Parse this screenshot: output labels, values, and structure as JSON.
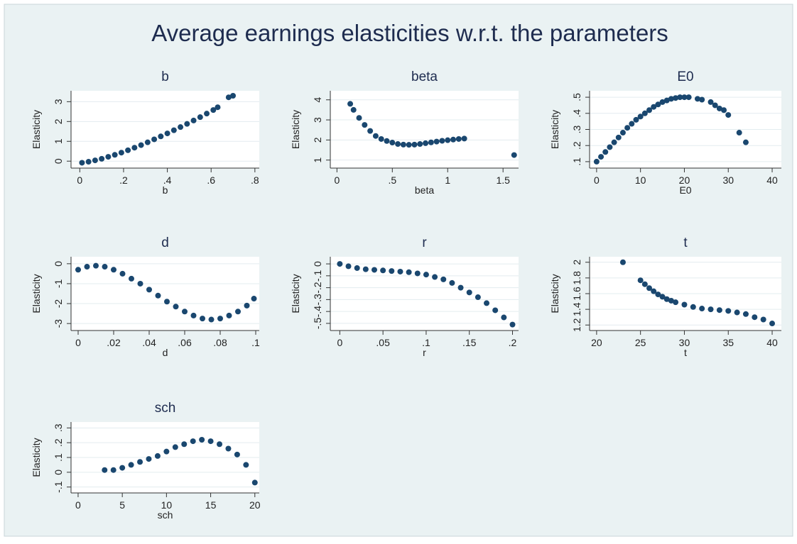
{
  "title": "Average earnings elasticities w.r.t. the parameters",
  "chart_data": [
    {
      "type": "scatter",
      "title": "b",
      "xlabel": "b",
      "ylabel": "Elasticity",
      "color": "#1a476f",
      "grid": true,
      "x": [
        0.01,
        0.04,
        0.07,
        0.1,
        0.13,
        0.16,
        0.19,
        0.22,
        0.25,
        0.28,
        0.31,
        0.34,
        0.37,
        0.4,
        0.43,
        0.46,
        0.49,
        0.52,
        0.55,
        0.58,
        0.61,
        0.63,
        0.68,
        0.7
      ],
      "values": [
        -0.08,
        -0.03,
        0.04,
        0.12,
        0.22,
        0.32,
        0.43,
        0.55,
        0.68,
        0.81,
        0.95,
        1.1,
        1.25,
        1.4,
        1.56,
        1.72,
        1.88,
        2.05,
        2.22,
        2.4,
        2.58,
        2.72,
        3.22,
        3.3
      ],
      "xlim": [
        -0.04,
        0.82
      ],
      "ylim": [
        -0.35,
        3.55
      ],
      "xticks": [
        0,
        {
          "value": 0.2,
          "label": ".2"
        },
        {
          "value": 0.4,
          "label": ".4"
        },
        {
          "value": 0.6,
          "label": ".6"
        },
        {
          "value": 0.8,
          "label": ".8"
        }
      ],
      "yticks": [
        0,
        1,
        2,
        3
      ]
    },
    {
      "type": "scatter",
      "title": "beta",
      "xlabel": "beta",
      "ylabel": "Elasticity",
      "color": "#1a476f",
      "grid": true,
      "x": [
        0.12,
        0.15,
        0.2,
        0.25,
        0.3,
        0.35,
        0.4,
        0.45,
        0.5,
        0.55,
        0.6,
        0.65,
        0.7,
        0.75,
        0.8,
        0.85,
        0.9,
        0.95,
        1.0,
        1.05,
        1.1,
        1.15,
        1.6
      ],
      "values": [
        3.8,
        3.5,
        3.1,
        2.75,
        2.45,
        2.2,
        2.05,
        1.95,
        1.87,
        1.8,
        1.77,
        1.76,
        1.77,
        1.8,
        1.84,
        1.88,
        1.92,
        1.96,
        1.99,
        2.02,
        2.05,
        2.07,
        1.25
      ],
      "xlim": [
        -0.06,
        1.64
      ],
      "ylim": [
        0.6,
        4.45
      ],
      "xticks": [
        0,
        {
          "value": 0.5,
          "label": ".5"
        },
        1,
        1.5
      ],
      "yticks": [
        1,
        2,
        3,
        4
      ]
    },
    {
      "type": "scatter",
      "title": "E0",
      "xlabel": "E0",
      "ylabel": "Elasticity",
      "color": "#1a476f",
      "grid": true,
      "x": [
        0,
        1,
        2,
        3,
        4,
        5,
        6,
        7,
        8,
        9,
        10,
        11,
        12,
        13,
        14,
        15,
        16,
        17,
        18,
        19,
        20,
        21,
        23,
        24,
        26,
        27,
        28,
        29,
        30,
        32.5,
        34
      ],
      "values": [
        0.1,
        0.13,
        0.16,
        0.19,
        0.22,
        0.25,
        0.28,
        0.31,
        0.335,
        0.36,
        0.38,
        0.4,
        0.42,
        0.44,
        0.455,
        0.47,
        0.48,
        0.49,
        0.495,
        0.5,
        0.5,
        0.5,
        0.49,
        0.485,
        0.47,
        0.45,
        0.43,
        0.42,
        0.39,
        0.28,
        0.22
      ],
      "xlim": [
        -1.6,
        42.1
      ],
      "ylim": [
        0.06,
        0.54
      ],
      "xticks": [
        0,
        10,
        20,
        30,
        40
      ],
      "yticks": [
        {
          "value": 0.1,
          "label": ".1"
        },
        {
          "value": 0.2,
          "label": ".2"
        },
        {
          "value": 0.3,
          "label": ".3"
        },
        {
          "value": 0.4,
          "label": ".4"
        },
        {
          "value": 0.5,
          "label": ".5"
        }
      ]
    },
    {
      "type": "scatter",
      "title": "d",
      "xlabel": "d",
      "ylabel": "Elasticity",
      "color": "#1a476f",
      "grid": true,
      "x": [
        0,
        0.005,
        0.01,
        0.015,
        0.02,
        0.025,
        0.03,
        0.035,
        0.04,
        0.045,
        0.05,
        0.055,
        0.06,
        0.065,
        0.07,
        0.075,
        0.08,
        0.085,
        0.09,
        0.095,
        0.099
      ],
      "values": [
        -0.3,
        -0.15,
        -0.1,
        -0.15,
        -0.3,
        -0.5,
        -0.75,
        -1.0,
        -1.3,
        -1.6,
        -1.9,
        -2.15,
        -2.4,
        -2.6,
        -2.75,
        -2.8,
        -2.75,
        -2.6,
        -2.4,
        -2.1,
        -1.75
      ],
      "xlim": [
        -0.004,
        0.102
      ],
      "ylim": [
        -3.35,
        0.35
      ],
      "xticks": [
        0,
        {
          "value": 0.02,
          "label": ".02"
        },
        {
          "value": 0.04,
          "label": ".04"
        },
        {
          "value": 0.06,
          "label": ".06"
        },
        {
          "value": 0.08,
          "label": ".08"
        },
        {
          "value": 0.1,
          "label": ".1"
        }
      ],
      "yticks": [
        -3,
        -2,
        -1,
        0
      ]
    },
    {
      "type": "scatter",
      "title": "r",
      "xlabel": "r",
      "ylabel": "Elasticity",
      "color": "#1a476f",
      "grid": true,
      "x": [
        0,
        0.01,
        0.02,
        0.03,
        0.04,
        0.05,
        0.06,
        0.07,
        0.08,
        0.09,
        0.1,
        0.11,
        0.12,
        0.13,
        0.14,
        0.15,
        0.16,
        0.17,
        0.18,
        0.19,
        0.2
      ],
      "values": [
        0,
        -0.02,
        -0.035,
        -0.045,
        -0.05,
        -0.055,
        -0.06,
        -0.065,
        -0.07,
        -0.08,
        -0.09,
        -0.11,
        -0.13,
        -0.16,
        -0.2,
        -0.24,
        -0.28,
        -0.33,
        -0.39,
        -0.45,
        -0.51
      ],
      "xlim": [
        -0.011,
        0.207
      ],
      "ylim": [
        -0.56,
        0.06
      ],
      "xticks": [
        0,
        {
          "value": 0.05,
          "label": ".05"
        },
        {
          "value": 0.1,
          "label": ".1"
        },
        {
          "value": 0.15,
          "label": ".15"
        },
        {
          "value": 0.2,
          "label": ".2"
        }
      ],
      "yticks": [
        {
          "value": -0.5,
          "label": "-.5"
        },
        {
          "value": -0.4,
          "label": "-.4"
        },
        {
          "value": -0.3,
          "label": "-.3"
        },
        {
          "value": -0.2,
          "label": "-.2"
        },
        {
          "value": -0.1,
          "label": "-.1"
        },
        0
      ]
    },
    {
      "type": "scatter",
      "title": "t",
      "xlabel": "t",
      "ylabel": "Elasticity",
      "color": "#1a476f",
      "grid": true,
      "x": [
        23,
        25,
        25.5,
        26,
        26.5,
        27,
        27.5,
        28,
        28.5,
        29,
        30,
        31,
        32,
        33,
        34,
        35,
        36,
        37,
        38,
        39,
        40
      ],
      "values": [
        2.0,
        1.77,
        1.72,
        1.67,
        1.63,
        1.59,
        1.56,
        1.53,
        1.51,
        1.49,
        1.46,
        1.43,
        1.41,
        1.4,
        1.39,
        1.38,
        1.36,
        1.34,
        1.3,
        1.27,
        1.22
      ],
      "xlim": [
        19.2,
        41.05
      ],
      "ylim": [
        1.13,
        2.07
      ],
      "xticks": [
        20,
        25,
        30,
        35,
        40
      ],
      "yticks": [
        1.2,
        1.4,
        1.6,
        1.8,
        2
      ]
    },
    {
      "type": "scatter",
      "title": "sch",
      "xlabel": "sch",
      "ylabel": "Elasticity",
      "color": "#1a476f",
      "grid": true,
      "x": [
        3,
        4,
        5,
        6,
        7,
        8,
        9,
        10,
        11,
        12,
        13,
        14,
        15,
        16,
        17,
        18,
        19,
        20
      ],
      "values": [
        0.015,
        0.015,
        0.03,
        0.05,
        0.07,
        0.09,
        0.11,
        0.14,
        0.17,
        0.19,
        0.21,
        0.22,
        0.21,
        0.19,
        0.16,
        0.12,
        0.05,
        -0.07
      ],
      "xlim": [
        -0.8,
        20.5
      ],
      "ylim": [
        -0.14,
        0.34
      ],
      "xticks": [
        0,
        5,
        10,
        15,
        20
      ],
      "yticks": [
        {
          "value": -0.1,
          "label": "-.1"
        },
        0,
        {
          "value": 0.1,
          "label": ".1"
        },
        {
          "value": 0.2,
          "label": ".2"
        },
        {
          "value": 0.3,
          "label": ".3"
        }
      ]
    }
  ]
}
